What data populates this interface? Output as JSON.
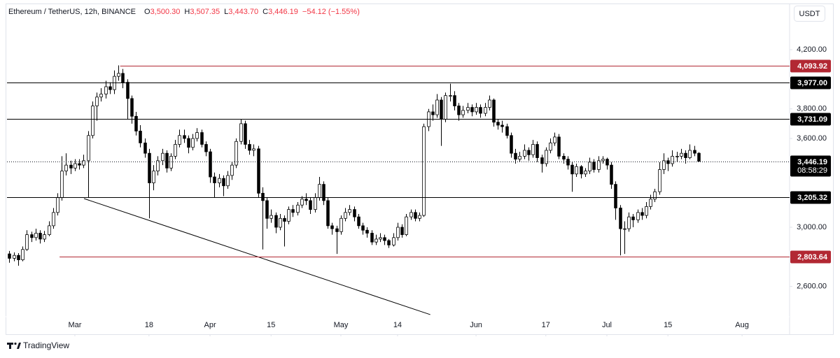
{
  "chart_data": {
    "type": "candlestick",
    "title": "Ethereum / TetherUS, 12h, BINANCE",
    "ohlc": [
      {
        "key": "O",
        "value": "3,500.30"
      },
      {
        "key": "H",
        "value": "3,507.35"
      },
      {
        "key": "L",
        "value": "3,443.70"
      },
      {
        "key": "C",
        "value": "3,446.19"
      }
    ],
    "change": "−54.12 (−1.55%)",
    "currency_button": "USDT",
    "brand": "TradingView",
    "up_color": "#ffffff",
    "down_color": "#000000",
    "wick_color": "#000000",
    "change_color": "#f23645",
    "grid": false,
    "xlim": [
      -0.56,
      178.9
    ],
    "xticks": [
      {
        "value": 15,
        "label": "Mar"
      },
      {
        "value": 32,
        "label": "18"
      },
      {
        "value": 46,
        "label": "Apr"
      },
      {
        "value": 60,
        "label": "15"
      },
      {
        "value": 76,
        "label": "May"
      },
      {
        "value": 89,
        "label": "14"
      },
      {
        "value": 107,
        "label": "Jun"
      },
      {
        "value": 123,
        "label": "17"
      },
      {
        "value": 137,
        "label": "Jul"
      },
      {
        "value": 151,
        "label": "15"
      },
      {
        "value": 168,
        "label": "Aug"
      }
    ],
    "ylim": [
      2277,
      4498
    ],
    "yticks": [
      {
        "value": 2600,
        "label": "2,600.00"
      },
      {
        "value": 3000,
        "label": "3,000.00"
      },
      {
        "value": 3600,
        "label": "3,600.00"
      },
      {
        "value": 3800,
        "label": "3,800.00"
      },
      {
        "value": 4200,
        "label": "4,200.00"
      }
    ],
    "x": [
      0,
      1,
      2,
      3,
      4,
      5,
      6,
      7,
      8,
      9,
      10,
      11,
      12,
      13,
      14,
      15,
      16,
      17,
      18,
      19,
      20,
      21,
      22,
      23,
      24,
      25,
      26,
      27,
      28,
      29,
      30,
      31,
      32,
      33,
      34,
      35,
      36,
      37,
      38,
      39,
      40,
      41,
      42,
      43,
      44,
      45,
      46,
      47,
      48,
      49,
      50,
      51,
      52,
      53,
      54,
      55,
      56,
      57,
      58,
      59,
      60,
      61,
      62,
      63,
      64,
      65,
      66,
      67,
      68,
      69,
      70,
      71,
      72,
      73,
      74,
      75,
      76,
      77,
      78,
      79,
      80,
      81,
      82,
      83,
      84,
      85,
      86,
      87,
      88,
      89,
      90,
      91,
      92,
      93,
      94,
      95,
      96,
      97,
      98,
      99,
      100,
      101,
      102,
      103,
      104,
      105,
      106,
      107,
      108,
      109,
      110,
      111,
      112,
      113,
      114,
      115,
      116,
      117,
      118,
      119,
      120,
      121,
      122,
      123,
      124,
      125,
      126,
      127,
      128,
      129,
      130,
      131,
      132,
      133,
      134,
      135,
      136,
      137,
      138,
      139,
      140,
      141,
      142,
      143,
      144,
      145,
      146,
      147,
      148,
      149,
      150,
      151,
      152,
      153,
      154,
      155,
      156,
      157,
      158
    ],
    "open": [
      2820,
      2790,
      2810,
      2780,
      2850,
      2950,
      2930,
      2960,
      2920,
      2950,
      3010,
      3100,
      3200,
      3380,
      3420,
      3400,
      3430,
      3420,
      3450,
      3620,
      3820,
      3880,
      3900,
      3950,
      3930,
      4020,
      4040,
      3980,
      3870,
      3750,
      3650,
      3570,
      3500,
      3300,
      3380,
      3450,
      3500,
      3400,
      3480,
      3560,
      3620,
      3600,
      3540,
      3600,
      3640,
      3560,
      3510,
      3340,
      3300,
      3330,
      3280,
      3350,
      3420,
      3580,
      3700,
      3560,
      3520,
      3530,
      3230,
      3180,
      3060,
      3080,
      3000,
      3060,
      3040,
      3120,
      3100,
      3150,
      3190,
      3180,
      3120,
      3200,
      3290,
      3180,
      3010,
      2990,
      2970,
      3060,
      3100,
      3120,
      3070,
      3010,
      2980,
      2960,
      2900,
      2920,
      2930,
      2910,
      2880,
      2930,
      3000,
      2950,
      3070,
      3100,
      3060,
      3080,
      3680,
      3780,
      3760,
      3860,
      3730,
      3890,
      3890,
      3820,
      3760,
      3790,
      3810,
      3780,
      3810,
      3770,
      3810,
      3860,
      3710,
      3690,
      3680,
      3620,
      3500,
      3460,
      3480,
      3520,
      3490,
      3560,
      3470,
      3430,
      3520,
      3570,
      3610,
      3480,
      3460,
      3420,
      3360,
      3410,
      3360,
      3380,
      3440,
      3390,
      3450,
      3460,
      3420,
      3290,
      3130,
      2990,
      2990,
      3070,
      3050,
      3100,
      3080,
      3140,
      3190,
      3240,
      3390,
      3450,
      3430,
      3480,
      3480,
      3500,
      3470,
      3520,
      3500.3
    ],
    "high": [
      2840,
      2830,
      2825,
      2870,
      2980,
      2970,
      2990,
      2980,
      2975,
      3040,
      3130,
      3230,
      3480,
      3500,
      3450,
      3460,
      3460,
      3490,
      3650,
      3850,
      3910,
      3940,
      3990,
      3980,
      4060,
      4094,
      4070,
      4000,
      3890,
      3780,
      3690,
      3600,
      3530,
      3420,
      3480,
      3530,
      3520,
      3500,
      3590,
      3660,
      3660,
      3620,
      3630,
      3670,
      3660,
      3580,
      3530,
      3370,
      3360,
      3350,
      3380,
      3440,
      3600,
      3730,
      3720,
      3590,
      3560,
      3550,
      3270,
      3200,
      3120,
      3100,
      3090,
      3080,
      3140,
      3150,
      3170,
      3210,
      3230,
      3200,
      3230,
      3340,
      3310,
      3200,
      3030,
      3010,
      3080,
      3130,
      3150,
      3140,
      3090,
      3030,
      3000,
      2980,
      2950,
      2960,
      2950,
      2920,
      2960,
      3030,
      3020,
      3090,
      3120,
      3120,
      3100,
      3700,
      3800,
      3830,
      3900,
      3880,
      3910,
      3970,
      3920,
      3840,
      3820,
      3840,
      3830,
      3840,
      3830,
      3840,
      3890,
      3870,
      3730,
      3720,
      3700,
      3640,
      3530,
      3510,
      3560,
      3540,
      3590,
      3580,
      3490,
      3540,
      3600,
      3640,
      3630,
      3500,
      3480,
      3440,
      3430,
      3420,
      3400,
      3470,
      3460,
      3480,
      3480,
      3470,
      3440,
      3310,
      3150,
      3040,
      3100,
      3090,
      3120,
      3130,
      3170,
      3220,
      3260,
      3440,
      3500,
      3470,
      3520,
      3510,
      3530,
      3520,
      3560,
      3550,
      3507.35
    ],
    "low": [
      2760,
      2770,
      2740,
      2770,
      2840,
      2900,
      2910,
      2890,
      2900,
      2940,
      2990,
      3080,
      3180,
      3350,
      3360,
      3380,
      3390,
      3400,
      3200,
      3600,
      3720,
      3850,
      3870,
      3900,
      3900,
      3990,
      3940,
      3730,
      3700,
      3620,
      3540,
      3470,
      3060,
      3250,
      3350,
      3420,
      3370,
      3380,
      3460,
      3540,
      3570,
      3500,
      3520,
      3580,
      3540,
      3480,
      3300,
      3200,
      3270,
      3210,
      3260,
      3320,
      3400,
      3560,
      3530,
      3490,
      3480,
      3200,
      2850,
      2990,
      3030,
      2960,
      2980,
      2870,
      3020,
      3070,
      3080,
      3130,
      3150,
      3090,
      3100,
      3180,
      3150,
      2990,
      2950,
      2820,
      2950,
      3040,
      3080,
      3040,
      2990,
      2950,
      2930,
      2880,
      2880,
      2900,
      2880,
      2860,
      2870,
      2910,
      2930,
      2940,
      3050,
      3040,
      3040,
      3070,
      3650,
      3720,
      3740,
      3550,
      3710,
      3850,
      3790,
      3720,
      3740,
      3770,
      3750,
      3760,
      3740,
      3750,
      3790,
      3680,
      3660,
      3640,
      3600,
      3470,
      3430,
      3440,
      3460,
      3450,
      3470,
      3440,
      3370,
      3410,
      3500,
      3550,
      3460,
      3430,
      3390,
      3240,
      3340,
      3330,
      3340,
      3360,
      3370,
      3370,
      3430,
      3390,
      3260,
      3050,
      2810,
      2820,
      2970,
      3000,
      3030,
      3050,
      3060,
      3120,
      3170,
      3220,
      3360,
      3380,
      3410,
      3440,
      3460,
      3430,
      3460,
      3480,
      3443.7
    ],
    "close": [
      2790,
      2810,
      2780,
      2850,
      2950,
      2930,
      2960,
      2920,
      2950,
      3010,
      3100,
      3200,
      3380,
      3420,
      3400,
      3430,
      3420,
      3450,
      3620,
      3820,
      3880,
      3900,
      3950,
      3930,
      4020,
      4040,
      3980,
      3870,
      3750,
      3650,
      3570,
      3500,
      3300,
      3380,
      3450,
      3500,
      3400,
      3480,
      3560,
      3620,
      3600,
      3540,
      3600,
      3640,
      3560,
      3510,
      3340,
      3300,
      3330,
      3280,
      3350,
      3420,
      3580,
      3700,
      3560,
      3520,
      3530,
      3230,
      3180,
      3060,
      3080,
      3000,
      3060,
      3040,
      3120,
      3100,
      3150,
      3190,
      3180,
      3120,
      3200,
      3290,
      3180,
      3010,
      2990,
      2970,
      3060,
      3100,
      3120,
      3070,
      3010,
      2980,
      2960,
      2900,
      2920,
      2930,
      2910,
      2880,
      2930,
      3000,
      2950,
      3070,
      3100,
      3060,
      3080,
      3680,
      3780,
      3760,
      3860,
      3730,
      3890,
      3890,
      3820,
      3760,
      3790,
      3810,
      3780,
      3810,
      3770,
      3810,
      3860,
      3710,
      3690,
      3680,
      3620,
      3500,
      3460,
      3480,
      3520,
      3490,
      3560,
      3470,
      3430,
      3520,
      3570,
      3610,
      3480,
      3460,
      3420,
      3360,
      3410,
      3360,
      3380,
      3440,
      3390,
      3450,
      3460,
      3420,
      3290,
      3130,
      2990,
      2990,
      3070,
      3050,
      3100,
      3080,
      3140,
      3190,
      3240,
      3390,
      3450,
      3430,
      3480,
      3480,
      3500,
      3470,
      3520,
      3500.3,
      3446.19
    ],
    "levels": [
      {
        "value": 4093.92,
        "label": "4,093.92",
        "color": "#b22833",
        "start": 25.4
      },
      {
        "value": 3977.0,
        "label": "3,977.00",
        "color": "#000000"
      },
      {
        "value": 3731.09,
        "label": "3,731.09",
        "color": "#000000"
      },
      {
        "value": 3205.32,
        "label": "3,205.32",
        "color": "#000000"
      },
      {
        "value": 2803.64,
        "label": "2,803.64",
        "color": "#b22833",
        "start": 11.5
      }
    ],
    "last_price": {
      "value": 3446.19,
      "label": "3,446.19",
      "countdown": "08:58:29"
    },
    "trend_line": {
      "start": [
        17.1,
        3193.7
      ],
      "end": [
        96.5,
        2409.5
      ],
      "color": "#000000"
    }
  }
}
